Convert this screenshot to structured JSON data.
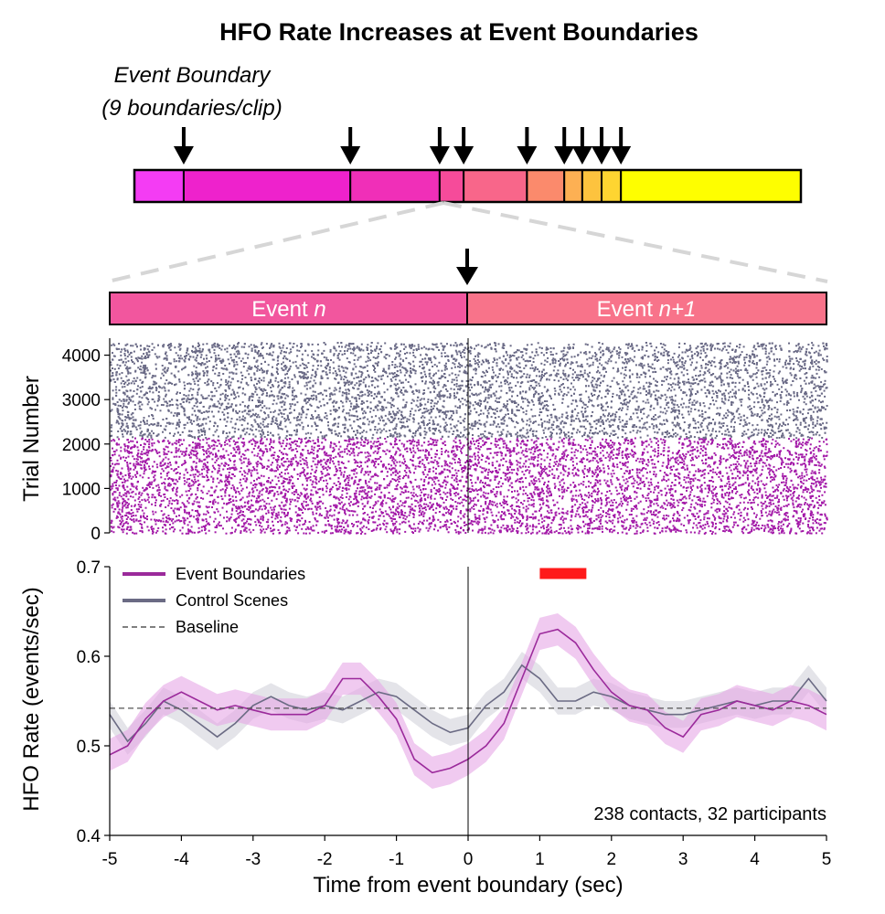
{
  "title": "HFO Rate Increases at Event Boundaries",
  "timeline": {
    "label_line1": "Event Boundary",
    "label_line2": "(9 boundaries/clip)",
    "boundaries_fraction": [
      0.074,
      0.324,
      0.458,
      0.494,
      0.589,
      0.645,
      0.672,
      0.701,
      0.73
    ],
    "colors": [
      "#f43cf4",
      "#ee22cc",
      "#f02fb8",
      "#f64b9a",
      "#f8668a",
      "#fb8a6c",
      "#fdb053",
      "#fdc33e",
      "#fed531",
      "#fefe00"
    ]
  },
  "event_bar": {
    "left_label_prefix": "Event ",
    "left_label_var": "n",
    "right_label_prefix": "Event ",
    "right_label_var": "n+1",
    "left_color": "#f2569e",
    "right_color": "#f8738a"
  },
  "raster": {
    "ylabel": "Trial Number",
    "yticks": [
      "0",
      "1000",
      "2000",
      "3000",
      "4000"
    ],
    "boundary_trials_max": 2150,
    "control_trials_max": 4300,
    "boundary_color": "#a31aa8",
    "control_color": "#6a6a86"
  },
  "chart_data": {
    "type": "line",
    "title": "HFO Rate Increases at Event Boundaries",
    "xlabel": "Time from event boundary (sec)",
    "ylabel": "HFO Rate (events/sec)",
    "xlim": [
      -5,
      5
    ],
    "ylim": [
      0.4,
      0.7
    ],
    "xticks": [
      "-5",
      "-4",
      "-3",
      "-2",
      "-1",
      "0",
      "1",
      "2",
      "3",
      "4",
      "5"
    ],
    "yticks": [
      "0.4",
      "0.5",
      "0.6",
      "0.7"
    ],
    "x": [
      -5,
      -4.75,
      -4.5,
      -4.25,
      -4,
      -3.75,
      -3.5,
      -3.25,
      -3,
      -2.75,
      -2.5,
      -2.25,
      -2,
      -1.75,
      -1.5,
      -1.25,
      -1,
      -0.75,
      -0.5,
      -0.25,
      0,
      0.25,
      0.5,
      0.75,
      1,
      1.25,
      1.5,
      1.75,
      2,
      2.25,
      2.5,
      2.75,
      3,
      3.25,
      3.5,
      3.75,
      4,
      4.25,
      4.5,
      4.75,
      5
    ],
    "series": [
      {
        "name": "Event Boundaries",
        "color": "#9b2a9b",
        "band_color": "#e6a6e6",
        "values": [
          0.49,
          0.5,
          0.53,
          0.55,
          0.56,
          0.55,
          0.54,
          0.545,
          0.54,
          0.535,
          0.535,
          0.535,
          0.545,
          0.575,
          0.575,
          0.555,
          0.53,
          0.485,
          0.47,
          0.475,
          0.485,
          0.5,
          0.525,
          0.575,
          0.625,
          0.63,
          0.615,
          0.585,
          0.56,
          0.545,
          0.54,
          0.52,
          0.51,
          0.535,
          0.54,
          0.55,
          0.545,
          0.54,
          0.55,
          0.545,
          0.535
        ],
        "band_halfwidth": 0.018
      },
      {
        "name": "Control Scenes",
        "color": "#6b6b84",
        "band_color": "#d2d2da",
        "values": [
          0.535,
          0.505,
          0.525,
          0.55,
          0.54,
          0.525,
          0.51,
          0.525,
          0.545,
          0.555,
          0.545,
          0.54,
          0.545,
          0.54,
          0.55,
          0.56,
          0.555,
          0.54,
          0.525,
          0.515,
          0.52,
          0.545,
          0.56,
          0.59,
          0.575,
          0.55,
          0.55,
          0.56,
          0.555,
          0.545,
          0.54,
          0.535,
          0.535,
          0.54,
          0.545,
          0.55,
          0.545,
          0.55,
          0.55,
          0.575,
          0.55
        ],
        "band_halfwidth": 0.015
      },
      {
        "name": "Baseline",
        "color": "#555555",
        "style": "dashed",
        "constant": 0.542
      }
    ],
    "significance_window": [
      1.0,
      1.65
    ],
    "significance_color": "#ff1a1a",
    "annotation": "238 contacts, 32 participants",
    "legend_position": "top-left",
    "grid": false
  }
}
